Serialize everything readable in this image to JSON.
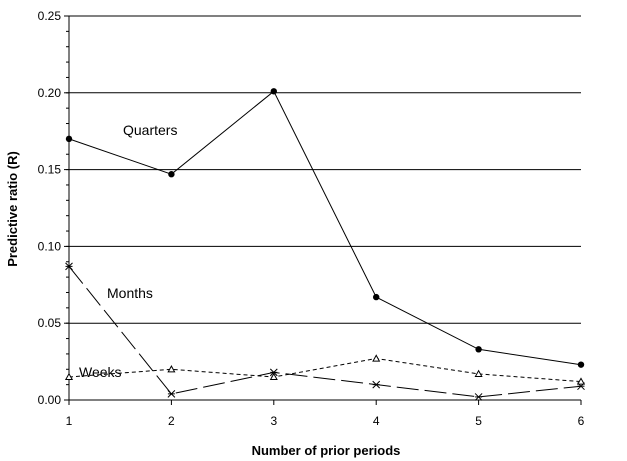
{
  "chart_data": {
    "type": "line",
    "title": "",
    "xlabel": "Number of prior periods",
    "ylabel": "Predictive ratio (R)",
    "x": [
      1,
      2,
      3,
      4,
      5,
      6
    ],
    "x_ticks": [
      "1",
      "2",
      "3",
      "4",
      "5",
      "6"
    ],
    "y_ticks": [
      "0.00",
      "0.05",
      "0.10",
      "0.15",
      "0.20",
      "0.25"
    ],
    "ylim": [
      0,
      0.25
    ],
    "xlim": [
      1,
      6
    ],
    "grid": "horizontal",
    "legend": "none",
    "series": [
      {
        "name": "Quarters",
        "values": [
          0.17,
          0.147,
          0.201,
          0.067,
          0.033,
          0.023
        ],
        "marker": "filled-circle",
        "line_style": "solid",
        "color": "#000000"
      },
      {
        "name": "Months",
        "values": [
          0.087,
          0.004,
          0.018,
          0.01,
          0.002,
          0.009
        ],
        "marker": "asterisk",
        "line_style": "long-dash",
        "color": "#000000"
      },
      {
        "name": "Weeks",
        "values": [
          0.015,
          0.02,
          0.015,
          0.027,
          0.017,
          0.012
        ],
        "marker": "open-triangle",
        "line_style": "short-dash",
        "color": "#000000"
      }
    ]
  }
}
